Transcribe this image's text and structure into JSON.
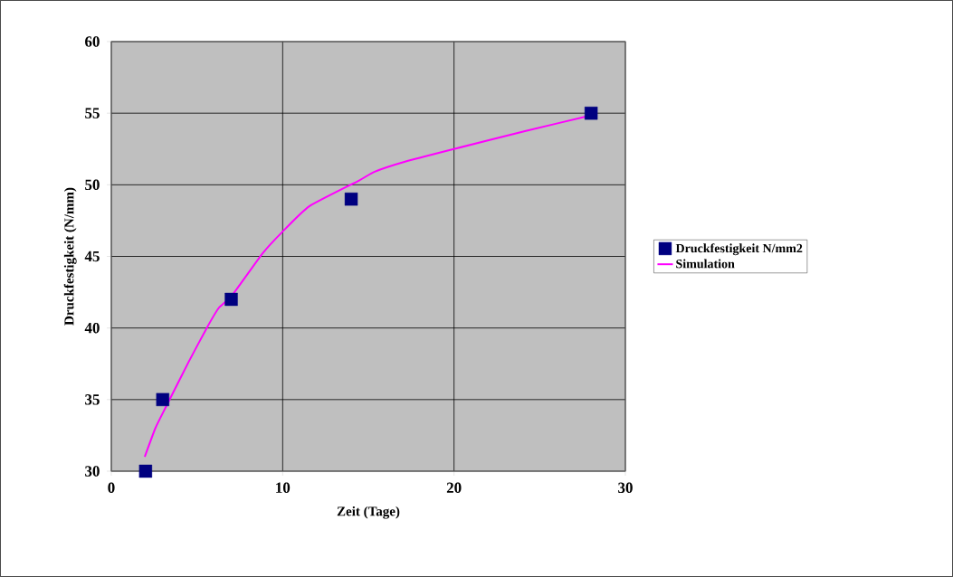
{
  "chart_data": {
    "type": "scatter",
    "xlabel": "Zeit (Tage)",
    "ylabel": "Druckfestigkeit (N/mm)",
    "xlim": [
      0,
      30
    ],
    "xticks": [
      0,
      10,
      20,
      30
    ],
    "ylim": [
      30,
      60
    ],
    "yticks": [
      30,
      35,
      40,
      45,
      50,
      55,
      60
    ],
    "grid": true,
    "legend": "right",
    "series": [
      {
        "name": "Druckfestigkeit N/mm2",
        "marker": "square",
        "color": "#000080",
        "x": [
          2,
          3,
          7,
          14,
          28
        ],
        "values": [
          30,
          35,
          42,
          49,
          55
        ]
      },
      {
        "name": "Simulation",
        "type": "line",
        "marker": "none",
        "color": "#ff00ff",
        "x": [
          1.95,
          2.57,
          3.19,
          4.5,
          5.57,
          6.27,
          7.06,
          8.82,
          9.97,
          11.55,
          14.46,
          15.34,
          17.1,
          20.0,
          24.14,
          27.84
        ],
        "values": [
          31.0,
          33.0,
          34.5,
          37.6,
          40.0,
          41.4,
          42.3,
          45.2,
          46.7,
          48.5,
          50.3,
          50.9,
          51.6,
          52.5,
          53.75,
          54.8
        ]
      }
    ]
  }
}
